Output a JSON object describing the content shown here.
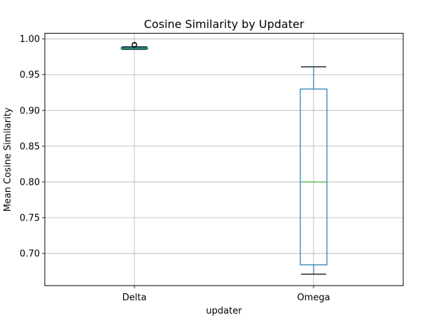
{
  "chart_data": {
    "type": "box",
    "title": "Cosine Similarity by Updater",
    "xlabel": "updater",
    "ylabel": "Mean Cosine Similarity",
    "ylim": [
      0.655,
      1.008
    ],
    "yticks": [
      0.7,
      0.75,
      0.8,
      0.85,
      0.9,
      0.95,
      1.0
    ],
    "ytick_labels": [
      "0.70",
      "0.75",
      "0.80",
      "0.85",
      "0.90",
      "0.95",
      "1.00"
    ],
    "categories": [
      "Delta",
      "Omega"
    ],
    "grid": true,
    "colors": {
      "box": "#1f77b4",
      "median": "#2ca02c",
      "whisker": "#000000",
      "grid": "#b0b0b0"
    },
    "boxes": [
      {
        "name": "Delta",
        "whisker_low": 0.9855,
        "q1": 0.9862,
        "median": 0.987,
        "q3": 0.988,
        "whisker_high": 0.989,
        "fliers": [
          0.9915,
          0.992
        ]
      },
      {
        "name": "Omega",
        "whisker_low": 0.671,
        "q1": 0.684,
        "median": 0.8,
        "q3": 0.93,
        "whisker_high": 0.961,
        "fliers": []
      }
    ]
  }
}
